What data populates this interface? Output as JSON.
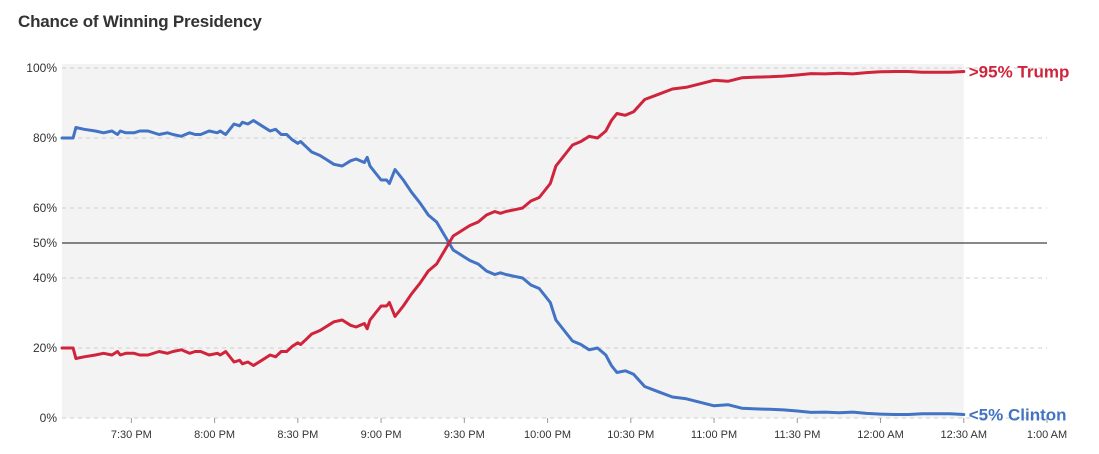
{
  "chart_data": {
    "type": "line",
    "title": "Chance of Winning Presidency",
    "ylim": [
      0,
      100
    ],
    "y_ticks": [
      "0%",
      "20%",
      "40%",
      "50%",
      "60%",
      "80%",
      "100%"
    ],
    "y_tick_values": [
      0,
      20,
      40,
      50,
      60,
      80,
      100
    ],
    "xlim": [
      "7:05 PM",
      "1:00 AM"
    ],
    "x_ticks": [
      "7:30 PM",
      "8:00 PM",
      "8:30 PM",
      "9:00 PM",
      "9:30 PM",
      "10:00 PM",
      "10:30 PM",
      "11:00 PM",
      "11:30 PM",
      "12:00 AM",
      "12:30 AM",
      "1:00 AM"
    ],
    "x_tick_minutes": [
      25,
      55,
      85,
      115,
      145,
      175,
      205,
      235,
      265,
      295,
      325,
      355
    ],
    "shaded_range_minutes": [
      0,
      325
    ],
    "reference_line": 50,
    "grid": true,
    "series": [
      {
        "name": "Clinton",
        "end_label": "<5% Clinton",
        "color": "#4273c4",
        "x": [
          0,
          4,
          5,
          8,
          12,
          15,
          18,
          20,
          21,
          23,
          26,
          28,
          31,
          35,
          38,
          40,
          43,
          46,
          48,
          50,
          53,
          56,
          57,
          58,
          59,
          62,
          64,
          65,
          67,
          69,
          72,
          75,
          77,
          79,
          81,
          83,
          85,
          86,
          88,
          90,
          93,
          95,
          98,
          101,
          104,
          106,
          109,
          110,
          111,
          113,
          115,
          117,
          118,
          120,
          123,
          126,
          129,
          132,
          135,
          138,
          141,
          143,
          145,
          147,
          150,
          153,
          156,
          158,
          160,
          163,
          166,
          169,
          172,
          174,
          176,
          178,
          181,
          184,
          187,
          190,
          193,
          196,
          198,
          200,
          203,
          206,
          210,
          215,
          220,
          225,
          230,
          235,
          240,
          245,
          250,
          255,
          260,
          265,
          270,
          275,
          280,
          285,
          290,
          295,
          300,
          305,
          310,
          315,
          320,
          325
        ],
        "values": [
          80,
          80,
          83,
          82.5,
          82,
          81.5,
          82,
          81,
          82,
          81.5,
          81.5,
          82,
          82,
          81,
          81.5,
          81,
          80.5,
          81.5,
          81,
          81,
          82,
          81.5,
          82,
          81.5,
          81,
          84,
          83.5,
          84.5,
          84,
          85,
          83.5,
          82,
          82.5,
          81,
          81,
          79.5,
          78.5,
          79,
          77.5,
          76,
          75,
          74,
          72.5,
          72,
          73.5,
          74,
          73,
          74.5,
          72,
          70,
          68,
          68,
          67,
          71,
          68,
          64.5,
          61.5,
          58,
          56,
          52,
          48,
          47,
          46,
          45,
          44,
          42,
          41,
          41.5,
          41,
          40.5,
          40,
          38,
          37,
          35,
          33,
          28,
          25,
          22,
          21,
          19.5,
          20,
          18,
          15,
          13,
          13.5,
          12.5,
          9,
          7.5,
          6,
          5.5,
          4.5,
          3.5,
          3.8,
          2.8,
          2.6,
          2.5,
          2.3,
          2,
          1.6,
          1.7,
          1.5,
          1.7,
          1.3,
          1.1,
          1,
          1,
          1.2,
          1.2,
          1.2,
          1
        ]
      },
      {
        "name": "Trump",
        "end_label": ">95% Trump",
        "color": "#d0243c",
        "x": [
          0,
          4,
          5,
          8,
          12,
          15,
          18,
          20,
          21,
          23,
          26,
          28,
          31,
          35,
          38,
          40,
          43,
          46,
          48,
          50,
          53,
          56,
          57,
          58,
          59,
          62,
          64,
          65,
          67,
          69,
          72,
          75,
          77,
          79,
          81,
          83,
          85,
          86,
          88,
          90,
          93,
          95,
          98,
          101,
          104,
          106,
          109,
          110,
          111,
          113,
          115,
          117,
          118,
          120,
          123,
          126,
          129,
          132,
          135,
          138,
          141,
          143,
          145,
          147,
          150,
          153,
          156,
          158,
          160,
          163,
          166,
          169,
          172,
          174,
          176,
          178,
          181,
          184,
          187,
          190,
          193,
          196,
          198,
          200,
          203,
          206,
          210,
          215,
          220,
          225,
          230,
          235,
          240,
          245,
          250,
          255,
          260,
          265,
          270,
          275,
          280,
          285,
          290,
          295,
          300,
          305,
          310,
          315,
          320,
          325
        ],
        "values": [
          20,
          20,
          17,
          17.5,
          18,
          18.5,
          18,
          19,
          18,
          18.5,
          18.5,
          18,
          18,
          19,
          18.5,
          19,
          19.5,
          18.5,
          19,
          19,
          18,
          18.5,
          18,
          18.5,
          19,
          16,
          16.5,
          15.5,
          16,
          15,
          16.5,
          18,
          17.5,
          19,
          19,
          20.5,
          21.5,
          21,
          22.5,
          24,
          25,
          26,
          27.5,
          28,
          26.5,
          26,
          27,
          25.5,
          28,
          30,
          32,
          32,
          33,
          29,
          32,
          35.5,
          38.5,
          42,
          44,
          48,
          52,
          53,
          54,
          55,
          56,
          58,
          59,
          58.5,
          59,
          59.5,
          60,
          62,
          63,
          65,
          67,
          72,
          75,
          78,
          79,
          80.5,
          80,
          82,
          85,
          87,
          86.5,
          87.5,
          91,
          92.5,
          94,
          94.5,
          95.5,
          96.5,
          96.2,
          97.2,
          97.4,
          97.5,
          97.7,
          98,
          98.4,
          98.3,
          98.5,
          98.3,
          98.7,
          98.9,
          99,
          99,
          98.8,
          98.8,
          98.8,
          99
        ]
      }
    ]
  }
}
